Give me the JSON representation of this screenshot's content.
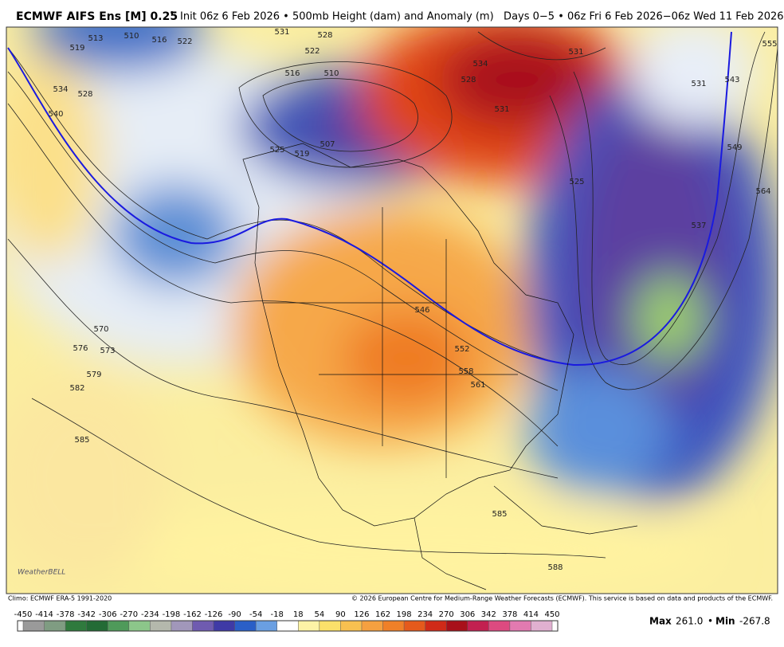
{
  "header": {
    "title": "ECMWF AIFS Ens [M] 0.25",
    "degree": "°",
    "subtitle": "Init 06z 6 Feb 2026 • 500mb Height (dam) and Anomaly (m)   Days 0−5 • 06z Fri 6 Feb 2026−06z Wed 11 Feb 2026"
  },
  "map": {
    "contour_labels": [
      510,
      513,
      516,
      519,
      522,
      531,
      528,
      522,
      516,
      510,
      534,
      531,
      528,
      531,
      525,
      531,
      543,
      549,
      555,
      564,
      537,
      534,
      528,
      540,
      525,
      519,
      507,
      570,
      573,
      576,
      579,
      582,
      585,
      552,
      558,
      561,
      546,
      585,
      588
    ]
  },
  "footer": {
    "climo": "Climo: ECMWF ERA-5 1991-2020",
    "copyright": "© 2026 European Centre for Medium-Range Weather Forecasts (ECMWF). This service is based on data and products of the ECMWF.",
    "logo": "WeatherBELL"
  },
  "colorbar": {
    "ticks": [
      -450,
      -414,
      -378,
      -342,
      -306,
      -270,
      -234,
      -198,
      -162,
      -126,
      -90,
      -54,
      -18,
      18,
      54,
      90,
      126,
      162,
      198,
      234,
      270,
      306,
      342,
      378,
      414,
      450
    ],
    "colors": [
      "#9a9a9a",
      "#7f9c82",
      "#2f7a3d",
      "#236b35",
      "#4f9a5a",
      "#8cc68a",
      "#b4b8ac",
      "#a197ba",
      "#6f5bb0",
      "#3f3aa6",
      "#2a5fc7",
      "#6a9fe2",
      "#ffffff",
      "#fdf3a6",
      "#fbe06a",
      "#f8c050",
      "#f5a040",
      "#f08028",
      "#e55a1c",
      "#d02a18",
      "#a8101a",
      "#c22050",
      "#dd4a80",
      "#e27ab0",
      "#e0b0d0"
    ]
  },
  "stats": {
    "max_label": "Max",
    "max": "261.0",
    "separator": "•",
    "min_label": "Min",
    "min": "-267.8"
  }
}
